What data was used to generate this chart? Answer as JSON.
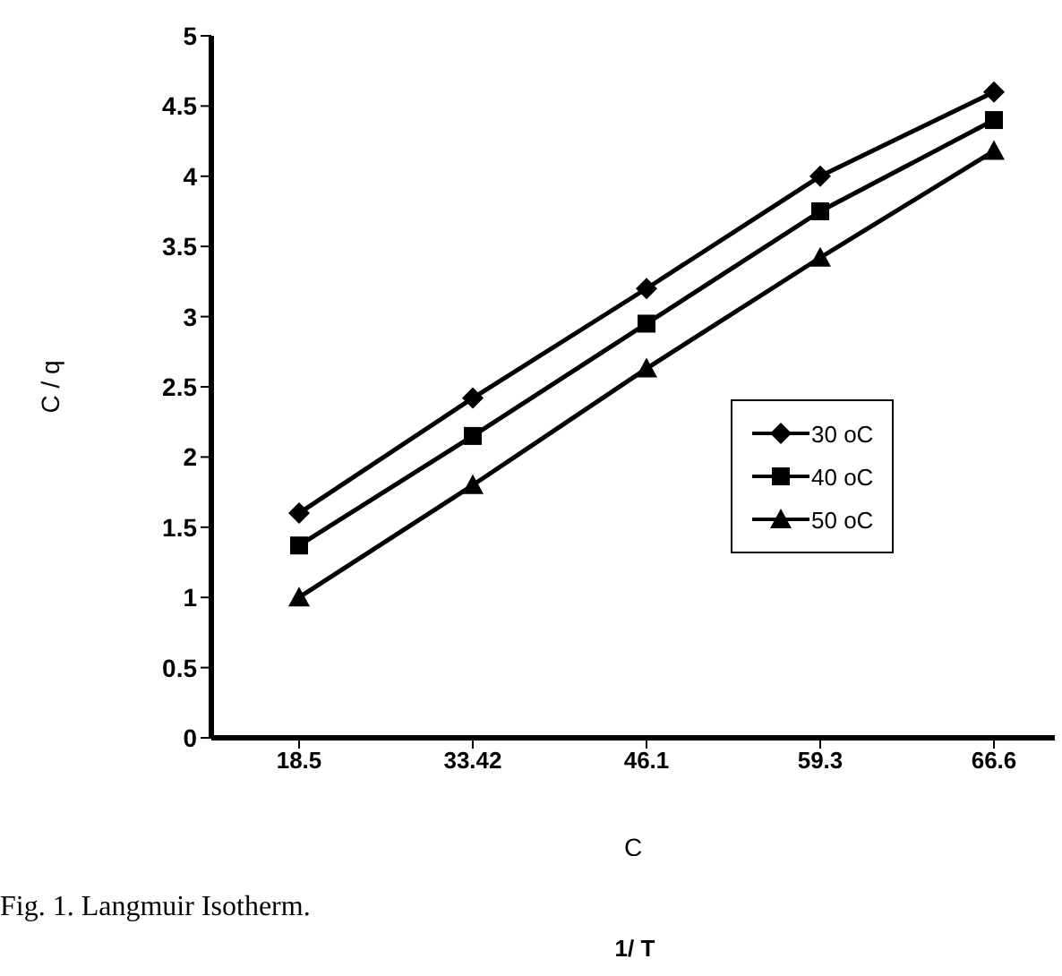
{
  "chart_data": {
    "type": "line",
    "xlabel": "C",
    "ylabel": "C / q",
    "categories": [
      "18.5",
      "33.42",
      "46.1",
      "59.3",
      "66.6"
    ],
    "series": [
      {
        "name": "30 oC",
        "color": "#000000",
        "marker": "diamond",
        "values": [
          1.6,
          2.42,
          3.2,
          4.0,
          4.6
        ]
      },
      {
        "name": "40 oC",
        "color": "#000000",
        "marker": "square",
        "values": [
          1.37,
          2.15,
          2.95,
          3.75,
          4.4
        ]
      },
      {
        "name": "50 oC",
        "color": "#000000",
        "marker": "triangle",
        "values": [
          1.0,
          1.8,
          2.63,
          3.42,
          4.18
        ]
      }
    ],
    "ylim": [
      0,
      5
    ],
    "yticks": [
      0,
      0.5,
      1,
      1.5,
      2,
      2.5,
      3,
      3.5,
      4,
      4.5,
      5
    ],
    "grid": false,
    "legend": "right",
    "line_style": "solid",
    "annotations": [
      "Fig. 1. Langmuir Isotherm.",
      "1/ T"
    ]
  }
}
